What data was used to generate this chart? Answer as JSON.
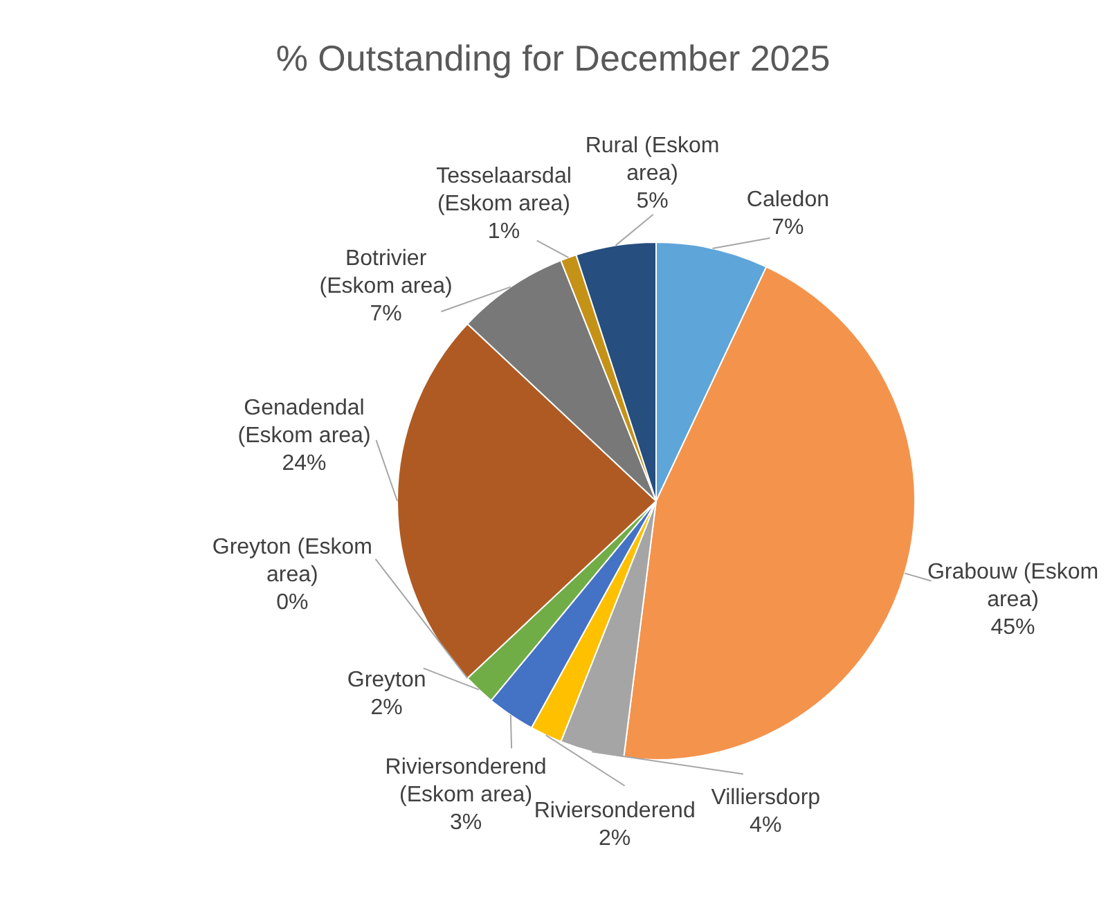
{
  "chart_data": {
    "type": "pie",
    "title": "% Outstanding for December 2025",
    "categories": [
      "Caledon",
      "Grabouw (Eskom area)",
      "Villiersdorp",
      "Riviersonderend",
      "Riviersonderend (Eskom area)",
      "Greyton",
      "Greyton (Eskom area)",
      "Genadendal (Eskom area)",
      "Botrivier (Eskom area)",
      "Tesselaarsdal (Eskom area)",
      "Rural (Eskom area)"
    ],
    "values": [
      7,
      45,
      4,
      2,
      3,
      2,
      0,
      24,
      7,
      1,
      5
    ],
    "value_labels": [
      "7%",
      "45%",
      "4%",
      "2%",
      "3%",
      "2%",
      "0%",
      "24%",
      "7%",
      "1%",
      "5%"
    ],
    "colors": [
      "#5ea5da",
      "#f4934c",
      "#a5a5a5",
      "#ffc000",
      "#4472c4",
      "#70ad47",
      "#255e91",
      "#b05a23",
      "#787878",
      "#c59218",
      "#264e7e"
    ]
  }
}
